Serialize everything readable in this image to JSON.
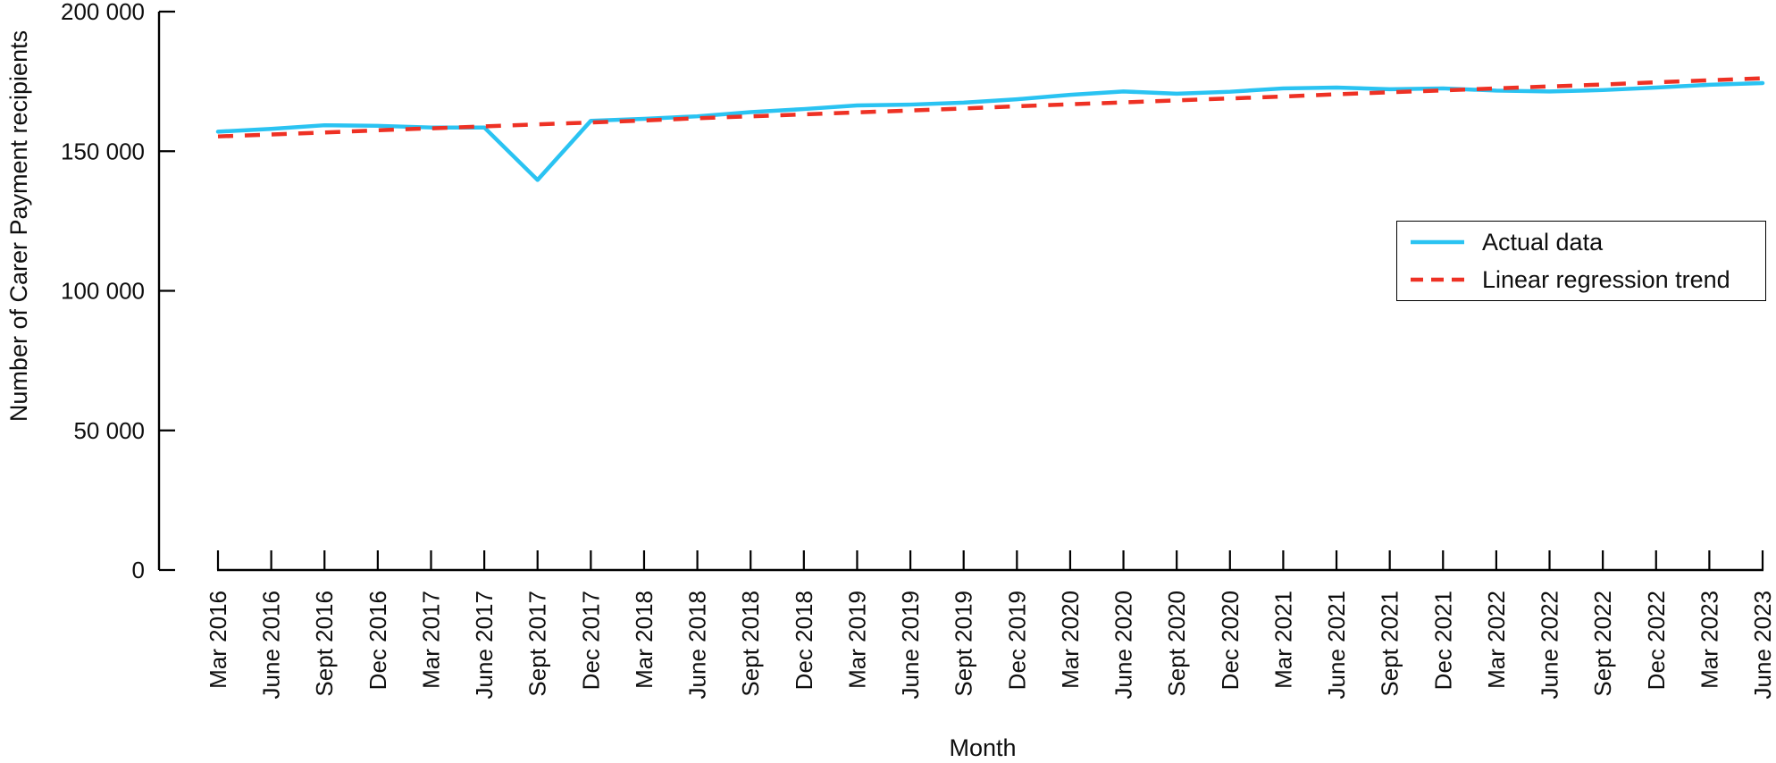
{
  "chart_data": {
    "type": "line",
    "title": "",
    "xlabel": "Month",
    "ylabel": "Number of Carer Payment recipients",
    "ylim": [
      0,
      200000
    ],
    "grid": false,
    "legend_position": "right-middle",
    "yticks": [
      {
        "value": 0,
        "label": "0"
      },
      {
        "value": 50000,
        "label": "50 000"
      },
      {
        "value": 100000,
        "label": "100 000"
      },
      {
        "value": 150000,
        "label": "150 000"
      },
      {
        "value": 200000,
        "label": "200 000"
      }
    ],
    "categories": [
      "Mar 2016",
      "June 2016",
      "Sept 2016",
      "Dec 2016",
      "Mar 2017",
      "June 2017",
      "Sept 2017",
      "Dec 2017",
      "Mar 2018",
      "June 2018",
      "Sept 2018",
      "Dec 2018",
      "Mar 2019",
      "June 2019",
      "Sept 2019",
      "Dec 2019",
      "Mar 2020",
      "June 2020",
      "Sept 2020",
      "Dec 2020",
      "Mar 2021",
      "June 2021",
      "Sept 2021",
      "Dec 2021",
      "Mar 2022",
      "June 2022",
      "Sept 2022",
      "Dec 2022",
      "Mar 2023",
      "June 2023"
    ],
    "series": [
      {
        "name": "Actual data",
        "color": "#2ac3f2",
        "style": "solid",
        "values": [
          157000,
          158000,
          159300,
          159100,
          158500,
          158500,
          139700,
          160900,
          161600,
          162500,
          164000,
          165100,
          166400,
          166700,
          167400,
          168600,
          170200,
          171400,
          170600,
          171300,
          172500,
          172800,
          172200,
          172500,
          171700,
          171400,
          171900,
          172800,
          173800,
          174400
        ]
      },
      {
        "name": "Linear regression trend",
        "color": "#ee3124",
        "style": "dashed",
        "values": [
          155300,
          156000,
          156700,
          157500,
          158200,
          158900,
          159600,
          160300,
          161000,
          161800,
          162500,
          163200,
          163900,
          164600,
          165300,
          166100,
          166800,
          167500,
          168200,
          168900,
          169600,
          170400,
          171100,
          171800,
          172500,
          173200,
          173900,
          174700,
          175400,
          176100
        ]
      }
    ]
  }
}
